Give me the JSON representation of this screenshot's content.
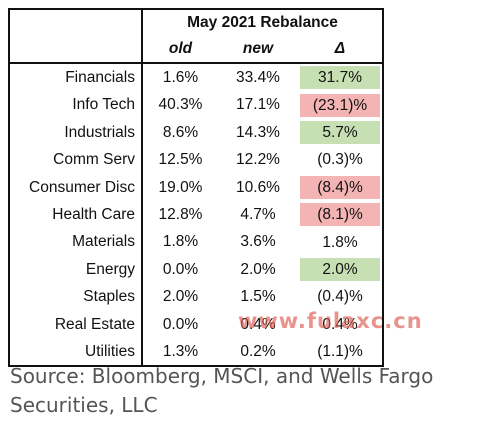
{
  "table": {
    "title": "May 2021 Rebalance",
    "columns": [
      "old",
      "new",
      "Δ"
    ],
    "rows": [
      {
        "sector": "Financials",
        "old": "1.6%",
        "new": "33.4%",
        "delta": "31.7%",
        "highlight": "pos"
      },
      {
        "sector": "Info Tech",
        "old": "40.3%",
        "new": "17.1%",
        "delta": "(23.1)%",
        "highlight": "neg"
      },
      {
        "sector": "Industrials",
        "old": "8.6%",
        "new": "14.3%",
        "delta": "5.7%",
        "highlight": "pos"
      },
      {
        "sector": "Comm Serv",
        "old": "12.5%",
        "new": "12.2%",
        "delta": "(0.3)%",
        "highlight": ""
      },
      {
        "sector": "Consumer Disc",
        "old": "19.0%",
        "new": "10.6%",
        "delta": "(8.4)%",
        "highlight": "neg"
      },
      {
        "sector": "Health Care",
        "old": "12.8%",
        "new": "4.7%",
        "delta": "(8.1)%",
        "highlight": "neg"
      },
      {
        "sector": "Materials",
        "old": "1.8%",
        "new": "3.6%",
        "delta": "1.8%",
        "highlight": ""
      },
      {
        "sector": "Energy",
        "old": "0.0%",
        "new": "2.0%",
        "delta": "2.0%",
        "highlight": "pos"
      },
      {
        "sector": "Staples",
        "old": "2.0%",
        "new": "1.5%",
        "delta": "(0.4)%",
        "highlight": ""
      },
      {
        "sector": "Real Estate",
        "old": "0.0%",
        "new": "0.4%",
        "delta": "0.4%",
        "highlight": ""
      },
      {
        "sector": "Utilities",
        "old": "1.3%",
        "new": "0.2%",
        "delta": "(1.1)%",
        "highlight": ""
      }
    ]
  },
  "source_lines": [
    "Source: Bloomberg, MSCI, and Wells Fargo",
    "Securities, LLC"
  ],
  "watermark": "www.fulaxc.cn",
  "colors": {
    "positive": "#c6e0b4",
    "negative": "#f4b4b4",
    "source_text": "#555555",
    "watermark": "#dc5a50"
  }
}
